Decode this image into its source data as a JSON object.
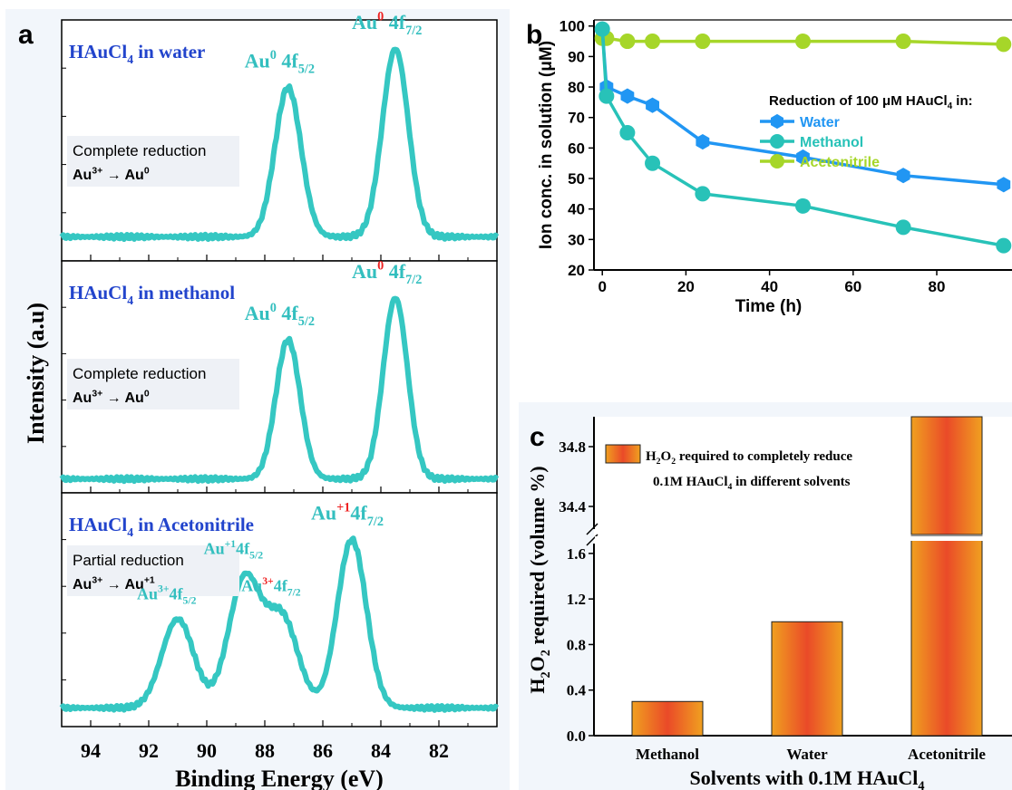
{
  "figure": {
    "colors": {
      "xps_line": "#35c7c2",
      "xps_label": "#33bfbf",
      "title_blue": "#2244cc",
      "red_sup": "#ee2222",
      "panel_bg": "#f2f6fb"
    }
  },
  "chart_data": [
    {
      "panel": "a",
      "type": "line",
      "xlabel": "Binding Energy (eV)",
      "ylabel": "Intensity (a.u)",
      "xlim": [
        95,
        80
      ],
      "xticks": [
        94,
        92,
        90,
        88,
        86,
        84,
        82
      ],
      "subplots": [
        {
          "title_main": "HAuCl",
          "title_sub": "4",
          "title_rest": " in water",
          "note_line1": "Complete reduction",
          "note_base1": "Au",
          "note_sup1": "3+",
          "note_arrow": "→",
          "note_base2": "Au",
          "note_sup2": "0",
          "baseline": 0.1,
          "baseline_slope": 0.0,
          "peaks": [
            {
              "center": 87.2,
              "height": 0.62,
              "width": 0.45
            },
            {
              "center": 83.5,
              "height": 0.78,
              "width": 0.45
            }
          ],
          "labels": [
            {
              "base": "Au",
              "sup": "0",
              "sup_red": false,
              "rest": " 4f",
              "sub": "5/2"
            },
            {
              "base": "Au",
              "sup": "0",
              "sup_red": true,
              "rest": " 4f",
              "sub": "7/2"
            }
          ]
        },
        {
          "title_main": "HAuCl",
          "title_sub": "4",
          "title_rest": " in methanol",
          "note_line1": "Complete reduction",
          "note_base1": "Au",
          "note_sup1": "3+",
          "note_arrow": "→",
          "note_base2": "Au",
          "note_sup2": "0",
          "baseline": 0.06,
          "baseline_slope": 0.0,
          "peaks": [
            {
              "center": 87.2,
              "height": 0.6,
              "width": 0.42
            },
            {
              "center": 83.5,
              "height": 0.78,
              "width": 0.42
            }
          ],
          "labels": [
            {
              "base": "Au",
              "sup": "0",
              "sup_red": false,
              "rest": " 4f",
              "sub": "5/2"
            },
            {
              "base": "Au",
              "sup": "0",
              "sup_red": true,
              "rest": " 4f",
              "sub": "7/2"
            }
          ]
        },
        {
          "title_main": "HAuCl",
          "title_sub": "4",
          "title_rest": " in Acetonitrile",
          "note_line1": "Partial reduction",
          "note_base1": "Au",
          "note_sup1": "3+",
          "note_arrow": "→",
          "note_base2": "Au",
          "note_sup2": "+1",
          "baseline": 0.08,
          "baseline_slope": 0.0,
          "peaks": [
            {
              "center": 91.0,
              "height": 0.38,
              "width": 0.55
            },
            {
              "center": 88.7,
              "height": 0.55,
              "width": 0.55
            },
            {
              "center": 87.4,
              "height": 0.38,
              "width": 0.55
            },
            {
              "center": 85.0,
              "height": 0.72,
              "width": 0.5
            }
          ],
          "labels": [
            {
              "base": "Au",
              "sup": "3+",
              "sup_red": false,
              "rest": "4f",
              "sub": "5/2"
            },
            {
              "base": "Au",
              "sup": "+1",
              "sup_red": false,
              "rest": "4f",
              "sub": "5/2"
            },
            {
              "base": "Au",
              "sup": "3+",
              "sup_red": true,
              "rest": "4f",
              "sub": "7/2"
            },
            {
              "base": "Au",
              "sup": "+1",
              "sup_red": true,
              "rest": "4f",
              "sub": "7/2"
            }
          ]
        }
      ]
    },
    {
      "panel": "b",
      "type": "line",
      "xlabel": "Time (h)",
      "ylabel": "Ion conc. in solution (μM)",
      "xlim": [
        -2,
        98
      ],
      "ylim": [
        20,
        102
      ],
      "xticks": [
        0,
        20,
        40,
        60,
        80
      ],
      "yticks": [
        20,
        30,
        40,
        50,
        60,
        70,
        80,
        90,
        100
      ],
      "legend": {
        "title_pre": "Reduction of 100 μM HAuCl",
        "title_sub": "4",
        "title_post": " in:",
        "position": "top-right"
      },
      "series": [
        {
          "name": "Water",
          "color": "#2196f3",
          "marker": "hexagon",
          "x": [
            0,
            1,
            6,
            12,
            24,
            48,
            72,
            96
          ],
          "y": [
            99,
            80,
            77,
            74,
            62,
            57,
            51,
            48
          ]
        },
        {
          "name": "Methanol",
          "color": "#28c2b8",
          "marker": "circle",
          "x": [
            0,
            1,
            6,
            12,
            24,
            48,
            72,
            96
          ],
          "y": [
            99,
            77,
            65,
            55,
            45,
            41,
            34,
            28
          ]
        },
        {
          "name": "Acetonitrile",
          "color": "#a6d629",
          "marker": "circle",
          "x": [
            0,
            1,
            6,
            12,
            24,
            48,
            72,
            96
          ],
          "y": [
            96,
            96,
            95,
            95,
            95,
            95,
            95,
            94
          ]
        }
      ]
    },
    {
      "panel": "c",
      "type": "bar",
      "xlabel_pre": "Solvents with 0.1M HAuCl",
      "xlabel_sub": "4",
      "ylabel_pre": "H",
      "ylabel_sub1": "2",
      "ylabel_mid": "O",
      "ylabel_sub2": "2",
      "ylabel_post": " required (volume %)",
      "categories": [
        "Methanol",
        "Water",
        "Acetonitrile"
      ],
      "values": [
        0.3,
        1.0,
        35.0
      ],
      "axis_break": true,
      "lower_ylim": [
        0,
        1.75
      ],
      "upper_ylim": [
        34.2,
        35.0
      ],
      "yticks_lower": [
        "0.0",
        "0.4",
        "0.8",
        "1.2",
        "1.6"
      ],
      "yticks_upper": [
        "34.4",
        "34.8"
      ],
      "legend": {
        "line1_pre": "H",
        "line1_sub1": "2",
        "line1_mid": "O",
        "line1_sub2": "2",
        "line1_post": " required to completely reduce",
        "line2_pre": "0.1M HAuCl",
        "line2_sub": "4",
        "line2_post": " in different solvents"
      }
    }
  ],
  "panel_letters": [
    "a",
    "b",
    "c"
  ]
}
